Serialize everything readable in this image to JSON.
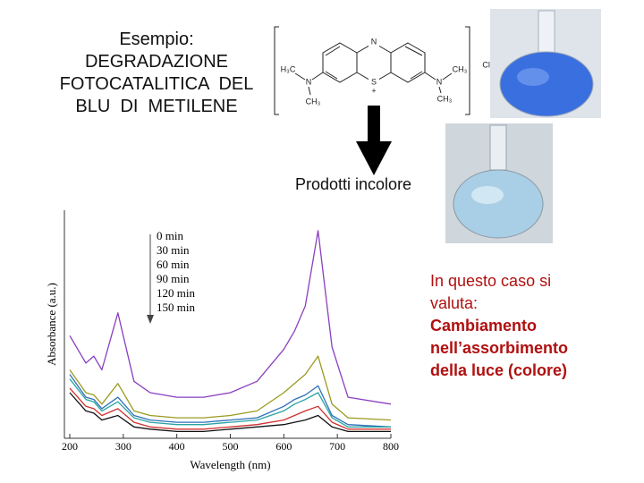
{
  "slide": {
    "title_lines": [
      "Esempio:",
      "DEGRADAZIONE",
      "FOTOCATALITICA  DEL",
      "BLU  DI  METILENE"
    ],
    "product_label": "Prodotti incolore",
    "note_lines": [
      "In questo caso si",
      "valuta:"
    ],
    "highlight_lines": [
      "Cambiamento",
      "nell’assorbimento",
      "della luce (colore)"
    ]
  },
  "molecule": {
    "ring_n": "N",
    "ring_s": "S",
    "charge": "+",
    "left_methyl_top": "H₃C",
    "left_n": "N",
    "left_methyl_bottom": "CH₃",
    "right_methyl_top": "CH₃",
    "right_n": "N",
    "right_methyl_bottom": "CH₃",
    "counter_ion": "Cl⁻"
  },
  "chart_data": {
    "type": "line",
    "x_label": "Wavelength (nm)",
    "y_label": "Absorbance (a.u.)",
    "x": [
      200,
      230,
      245,
      260,
      290,
      320,
      350,
      400,
      450,
      500,
      550,
      600,
      620,
      640,
      664,
      690,
      720,
      800
    ],
    "xlim": [
      200,
      800
    ],
    "xticks": [
      200,
      300,
      400,
      500,
      600,
      700,
      800
    ],
    "ylim": [
      0,
      1
    ],
    "series": [
      {
        "name": "0 min",
        "color": "#8a3fc0",
        "values": [
          0.45,
          0.33,
          0.36,
          0.3,
          0.55,
          0.25,
          0.2,
          0.18,
          0.18,
          0.2,
          0.25,
          0.39,
          0.47,
          0.58,
          0.91,
          0.4,
          0.18,
          0.15
        ]
      },
      {
        "name": "30 min",
        "color": "#9a9a20",
        "values": [
          0.3,
          0.2,
          0.19,
          0.15,
          0.24,
          0.12,
          0.1,
          0.09,
          0.09,
          0.1,
          0.12,
          0.2,
          0.24,
          0.28,
          0.36,
          0.15,
          0.09,
          0.08
        ]
      },
      {
        "name": "60 min",
        "color": "#2d6fb8",
        "values": [
          0.28,
          0.18,
          0.17,
          0.13,
          0.18,
          0.1,
          0.08,
          0.07,
          0.07,
          0.08,
          0.09,
          0.14,
          0.17,
          0.19,
          0.23,
          0.1,
          0.06,
          0.05
        ]
      },
      {
        "name": "90 min",
        "color": "#2aa3a3",
        "values": [
          0.26,
          0.17,
          0.16,
          0.12,
          0.16,
          0.09,
          0.07,
          0.06,
          0.06,
          0.07,
          0.08,
          0.12,
          0.15,
          0.17,
          0.2,
          0.09,
          0.05,
          0.05
        ]
      },
      {
        "name": "120 min",
        "color": "#d03030",
        "values": [
          0.22,
          0.14,
          0.13,
          0.1,
          0.13,
          0.07,
          0.05,
          0.04,
          0.04,
          0.05,
          0.06,
          0.08,
          0.1,
          0.12,
          0.14,
          0.07,
          0.04,
          0.04
        ]
      },
      {
        "name": "150 min",
        "color": "#111111",
        "values": [
          0.2,
          0.12,
          0.11,
          0.08,
          0.1,
          0.05,
          0.04,
          0.03,
          0.03,
          0.04,
          0.05,
          0.06,
          0.07,
          0.08,
          0.1,
          0.05,
          0.03,
          0.03
        ]
      }
    ]
  }
}
